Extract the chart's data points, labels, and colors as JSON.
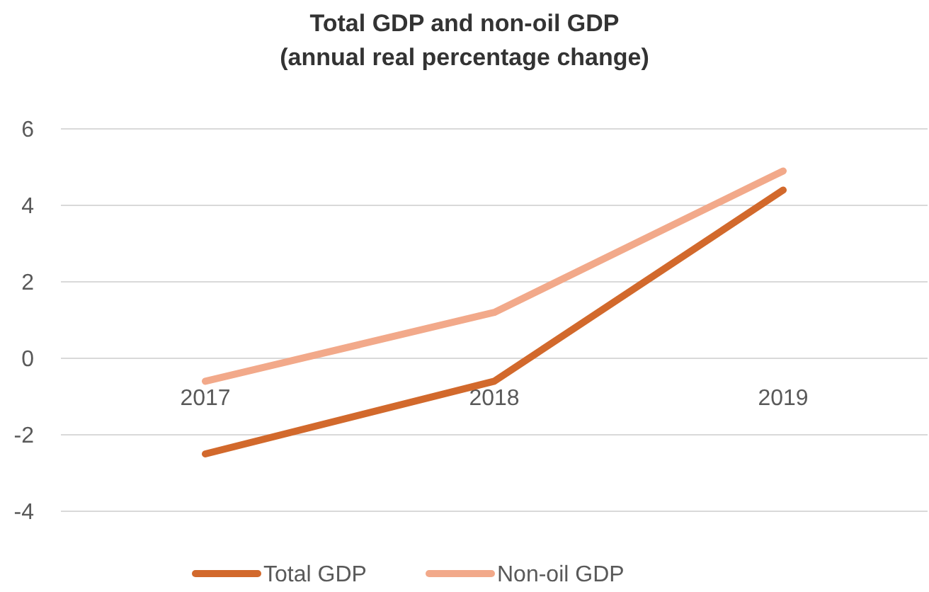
{
  "chart_data": {
    "type": "line",
    "title": "Total GDP and non-oil GDP\n(annual real percentage change)",
    "categories": [
      "2017",
      "2018",
      "2019"
    ],
    "series": [
      {
        "name": "Total GDP",
        "color": "#d2692c",
        "values": [
          -2.5,
          -0.6,
          4.4
        ]
      },
      {
        "name": "Non-oil GDP",
        "color": "#f2a98a",
        "values": [
          -0.6,
          1.2,
          4.9
        ]
      }
    ],
    "ylim": [
      -4,
      6
    ],
    "yticks": [
      -4,
      -2,
      0,
      2,
      4,
      6
    ],
    "grid": "y",
    "legend": "bottom",
    "marker": "none",
    "line_style": "solid"
  }
}
